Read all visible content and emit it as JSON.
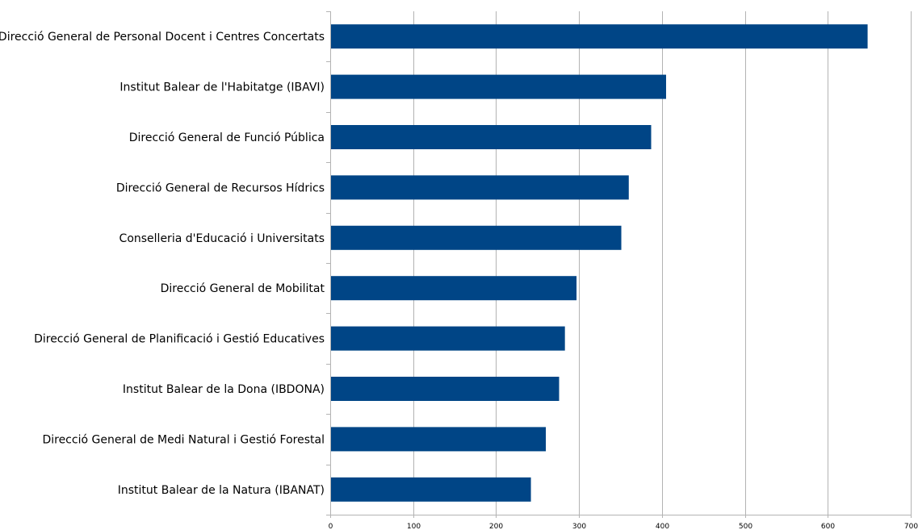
{
  "colors": {
    "bar": "#004586",
    "grid": "#b3b3b3",
    "axis": "#b3b3b3"
  },
  "chart_data": {
    "type": "bar",
    "orientation": "horizontal",
    "grid": true,
    "xlim": [
      0,
      700
    ],
    "ticks": [
      "0",
      "100",
      "200",
      "300",
      "400",
      "500",
      "600",
      "700"
    ],
    "tick_values": [
      0,
      100,
      200,
      300,
      400,
      500,
      600,
      700
    ],
    "categories": [
      "Direcció General de Personal Docent i Centres Concertats",
      "Institut Balear de l'Habitatge (IBAVI)",
      "Direcció General de Funció Pública",
      "Direcció General de Recursos Hídrics",
      "Conselleria d'Educació i Universitats",
      "Direcció General de Mobilitat",
      "Direcció General de Planificació i Gestió Educatives",
      "Institut Balear de la Dona (IBDONA)",
      "Direcció General de Medi Natural i Gestió Forestal",
      "Institut Balear de la Natura (IBANAT)"
    ],
    "values": [
      648,
      405,
      387,
      360,
      351,
      297,
      283,
      276,
      260,
      242
    ]
  }
}
